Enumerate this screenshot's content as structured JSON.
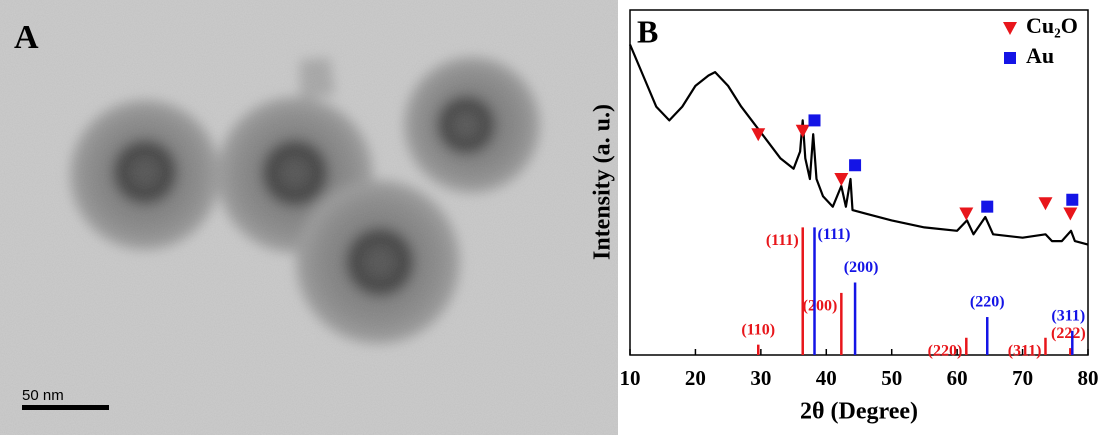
{
  "image_panel": {
    "label": "A",
    "scale_bar": "50 nm"
  },
  "chart_data": {
    "type": "line",
    "panel_label": "B",
    "xlabel": "2θ (Degree)",
    "ylabel": "Intensity (a. u.)",
    "xlim": [
      10,
      80
    ],
    "xticks": [
      10,
      20,
      30,
      40,
      50,
      60,
      70,
      80
    ],
    "ylim": [
      0,
      100
    ],
    "pattern": {
      "color": "#000000",
      "x": [
        10,
        12,
        14,
        16,
        18,
        20,
        22,
        23,
        25,
        27,
        29,
        31,
        33,
        35,
        36,
        36.4,
        36.8,
        37.5,
        38,
        38.5,
        39.5,
        41,
        42.3,
        43,
        43.7,
        44,
        46,
        50,
        55,
        60,
        61.5,
        62.5,
        64.3,
        65.5,
        70,
        73.5,
        74.5,
        76,
        77.4,
        78,
        80
      ],
      "values": [
        90,
        81,
        72,
        68,
        72,
        78,
        81,
        82,
        78,
        72,
        67,
        62,
        57,
        54,
        59,
        68,
        57,
        51,
        64,
        51,
        46,
        43,
        49,
        43,
        51,
        42,
        41,
        39,
        37,
        36,
        39,
        35,
        40,
        35,
        34,
        35,
        33,
        33,
        36,
        33,
        32
      ]
    },
    "phases": [
      {
        "name": "Cu₂O",
        "color": "#e8161b",
        "marker": "triangle",
        "peak_x": [
          29.6,
          36.4,
          42.3,
          61.4,
          73.5,
          77.3
        ],
        "peak_values": [
          64,
          65,
          51,
          41,
          44,
          41
        ],
        "ref_x": [
          29.6,
          36.4,
          42.3,
          61.4,
          73.5,
          77.3
        ],
        "ref_values": [
          3,
          37,
          18,
          5,
          5,
          2
        ],
        "ref_labels": [
          "(110)",
          "(111)",
          "(200)",
          "(220)",
          "(311)",
          "(222)"
        ]
      },
      {
        "name": "Au",
        "color": "#1414e6",
        "marker": "square",
        "peak_x": [
          38.2,
          44.4,
          64.6,
          77.6
        ],
        "peak_values": [
          68,
          55,
          43,
          45
        ],
        "ref_x": [
          38.2,
          44.4,
          64.6,
          77.6
        ],
        "ref_values": [
          37,
          21,
          11,
          7
        ],
        "ref_labels": [
          "(111)",
          "(200)",
          "(220)",
          "(311)"
        ]
      }
    ]
  }
}
